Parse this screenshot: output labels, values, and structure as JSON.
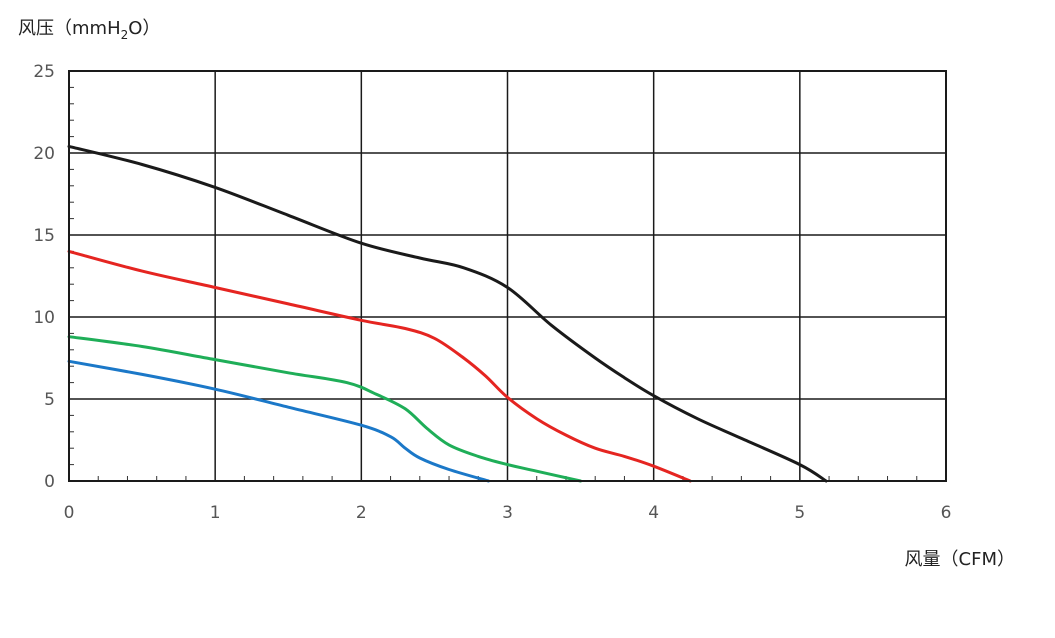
{
  "chart_data": {
    "type": "line",
    "title": "",
    "ylabel": {
      "prefix": "风压（mmH",
      "subscript": "2",
      "suffix": "O）"
    },
    "xlabel": "风量（CFM）",
    "xlim": [
      0,
      6
    ],
    "ylim": [
      0,
      25
    ],
    "xticks": [
      0,
      1,
      2,
      3,
      4,
      5,
      6
    ],
    "yticks": [
      0,
      5,
      10,
      15,
      20,
      25
    ],
    "x_minor_step": 0.2,
    "y_minor_step": 1,
    "grid": true,
    "legend": "none",
    "series": [
      {
        "color": "#1a1a1a",
        "points": [
          [
            0,
            20.4
          ],
          [
            0.5,
            19.3
          ],
          [
            1,
            17.9
          ],
          [
            1.5,
            16.2
          ],
          [
            2,
            14.5
          ],
          [
            2.4,
            13.6
          ],
          [
            2.7,
            13.0
          ],
          [
            3,
            11.8
          ],
          [
            3.3,
            9.5
          ],
          [
            3.6,
            7.5
          ],
          [
            3.8,
            6.3
          ],
          [
            4,
            5.2
          ],
          [
            4.3,
            3.8
          ],
          [
            4.6,
            2.6
          ],
          [
            5,
            1.0
          ],
          [
            5.18,
            0
          ]
        ]
      },
      {
        "color": "#e52521",
        "points": [
          [
            0,
            14.0
          ],
          [
            0.5,
            12.8
          ],
          [
            1,
            11.8
          ],
          [
            1.5,
            10.8
          ],
          [
            2,
            9.8
          ],
          [
            2.3,
            9.3
          ],
          [
            2.5,
            8.7
          ],
          [
            2.7,
            7.5
          ],
          [
            2.85,
            6.4
          ],
          [
            3,
            5.1
          ],
          [
            3.2,
            3.8
          ],
          [
            3.4,
            2.8
          ],
          [
            3.6,
            2.0
          ],
          [
            3.8,
            1.5
          ],
          [
            4,
            0.9
          ],
          [
            4.25,
            0
          ]
        ]
      },
      {
        "color": "#1fae58",
        "points": [
          [
            0,
            8.8
          ],
          [
            0.5,
            8.2
          ],
          [
            1,
            7.4
          ],
          [
            1.5,
            6.6
          ],
          [
            1.9,
            6.0
          ],
          [
            2.1,
            5.3
          ],
          [
            2.3,
            4.4
          ],
          [
            2.45,
            3.2
          ],
          [
            2.6,
            2.2
          ],
          [
            2.8,
            1.5
          ],
          [
            3,
            1.0
          ],
          [
            3.2,
            0.6
          ],
          [
            3.5,
            0
          ]
        ]
      },
      {
        "color": "#1b78c8",
        "points": [
          [
            0,
            7.3
          ],
          [
            0.5,
            6.5
          ],
          [
            1,
            5.6
          ],
          [
            1.5,
            4.5
          ],
          [
            2,
            3.4
          ],
          [
            2.2,
            2.7
          ],
          [
            2.3,
            2.0
          ],
          [
            2.4,
            1.4
          ],
          [
            2.6,
            0.7
          ],
          [
            2.87,
            0
          ]
        ]
      }
    ]
  }
}
